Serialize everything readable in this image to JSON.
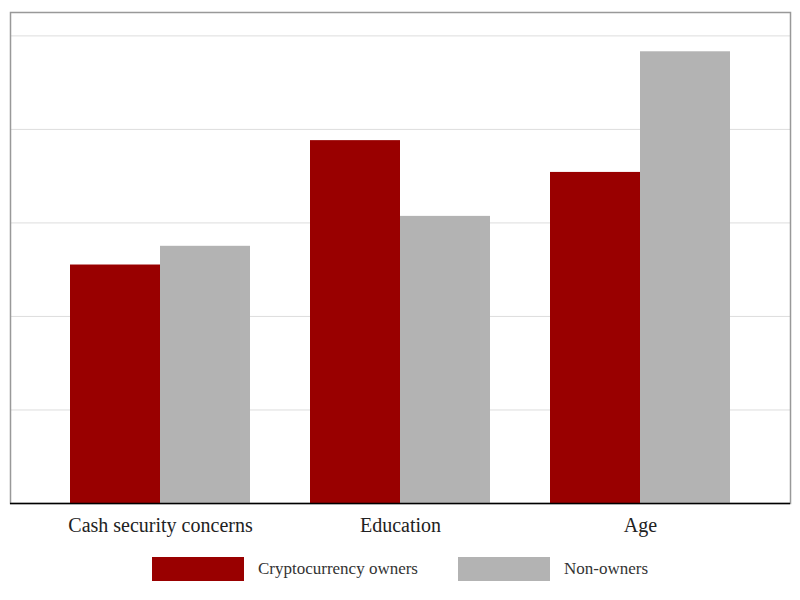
{
  "chart_data": {
    "type": "bar",
    "categories": [
      "Cash security concerns",
      "Education",
      "Age"
    ],
    "series": [
      {
        "name": "Cryptocurrency owners",
        "color": "#990000",
        "values": [
          2.55,
          3.88,
          3.54
        ]
      },
      {
        "name": "Non-owners",
        "color": "#b3b3b3",
        "values": [
          2.75,
          3.07,
          4.83
        ]
      }
    ],
    "ylim": [
      0,
      5.25
    ],
    "yticks": [
      0,
      1,
      2,
      3,
      4,
      5
    ],
    "grid": true,
    "tick_labels": "x",
    "legend": "bottom"
  }
}
